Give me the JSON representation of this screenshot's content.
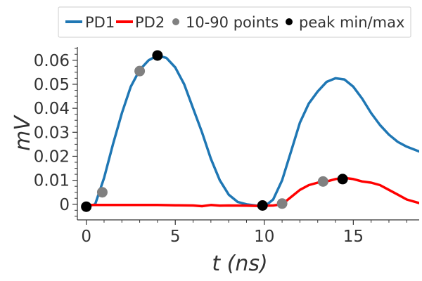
{
  "chart_data": {
    "type": "line",
    "title": "",
    "xlabel": "t (ns)",
    "ylabel": "mV",
    "xlim": [
      -0.5,
      18.7
    ],
    "ylim": [
      -0.0065,
      0.0655
    ],
    "x_ticks": [
      0,
      5,
      10,
      15
    ],
    "x_tick_labels": [
      "0",
      "5",
      "10",
      "15"
    ],
    "y_ticks": [
      0,
      0.01,
      0.02,
      0.03,
      0.04,
      0.05,
      0.06
    ],
    "y_tick_labels": [
      "0",
      "0.01",
      "0.02",
      "0.03",
      "0.04",
      "0.05",
      "0.06"
    ],
    "grid": false,
    "legend_position": "top",
    "legend": [
      {
        "label": "PD1",
        "kind": "line",
        "color": "#1f77b4"
      },
      {
        "label": "PD2",
        "kind": "line",
        "color": "#ff0000"
      },
      {
        "label": "10-90 points",
        "kind": "marker",
        "color": "#808080"
      },
      {
        "label": "peak min/max",
        "kind": "marker",
        "color": "#000000"
      }
    ],
    "series": [
      {
        "name": "PD1",
        "color": "#1f77b4",
        "x": [
          0,
          0.5,
          1.0,
          1.5,
          2.0,
          2.5,
          3.0,
          3.5,
          4.0,
          4.5,
          5.0,
          5.5,
          6.0,
          6.5,
          7.0,
          7.5,
          8.0,
          8.5,
          9.0,
          9.5,
          10.0,
          10.5,
          11.0,
          11.5,
          12.0,
          12.5,
          13.0,
          13.5,
          14.0,
          14.5,
          15.0,
          15.5,
          16.0,
          16.5,
          17.0,
          17.5,
          18.0,
          18.7
        ],
        "y": [
          -0.001,
          0.0,
          0.011,
          0.025,
          0.038,
          0.049,
          0.056,
          0.06,
          0.062,
          0.061,
          0.057,
          0.05,
          0.04,
          0.03,
          0.019,
          0.01,
          0.004,
          0.001,
          0.0,
          -0.0005,
          -0.001,
          0.002,
          0.01,
          0.022,
          0.034,
          0.042,
          0.047,
          0.051,
          0.0525,
          0.052,
          0.049,
          0.044,
          0.038,
          0.033,
          0.029,
          0.026,
          0.024,
          0.022
        ]
      },
      {
        "name": "PD2",
        "color": "#ff0000",
        "x": [
          0,
          1,
          2,
          3,
          4,
          5,
          6,
          6.5,
          7,
          7.5,
          8,
          9,
          9.8,
          10.5,
          11.0,
          11.5,
          12.0,
          12.5,
          13.0,
          13.5,
          14.0,
          14.5,
          15.0,
          15.5,
          16.0,
          16.5,
          17.0,
          17.5,
          18.0,
          18.7
        ],
        "y": [
          -0.0003,
          -0.0003,
          -0.0003,
          -0.0003,
          -0.0003,
          -0.0004,
          -0.0005,
          -0.0008,
          -0.0003,
          -0.0006,
          -0.0005,
          -0.0006,
          -0.0007,
          -0.0005,
          0.0,
          0.003,
          0.006,
          0.008,
          0.009,
          0.0095,
          0.0105,
          0.011,
          0.0105,
          0.0095,
          0.009,
          0.008,
          0.006,
          0.004,
          0.002,
          0.0005
        ]
      }
    ],
    "markers": [
      {
        "group": "10-90 points",
        "color": "#808080",
        "x": 0.9,
        "y": 0.005
      },
      {
        "group": "10-90 points",
        "color": "#808080",
        "x": 3.0,
        "y": 0.0555
      },
      {
        "group": "10-90 points",
        "color": "#808080",
        "x": 11.0,
        "y": 0.0003
      },
      {
        "group": "10-90 points",
        "color": "#808080",
        "x": 13.3,
        "y": 0.0095
      },
      {
        "group": "peak min/max",
        "color": "#000000",
        "x": 0.0,
        "y": -0.001
      },
      {
        "group": "peak min/max",
        "color": "#000000",
        "x": 4.0,
        "y": 0.062
      },
      {
        "group": "peak min/max",
        "color": "#000000",
        "x": 9.9,
        "y": -0.0005
      },
      {
        "group": "peak min/max",
        "color": "#000000",
        "x": 14.4,
        "y": 0.0105
      }
    ]
  }
}
